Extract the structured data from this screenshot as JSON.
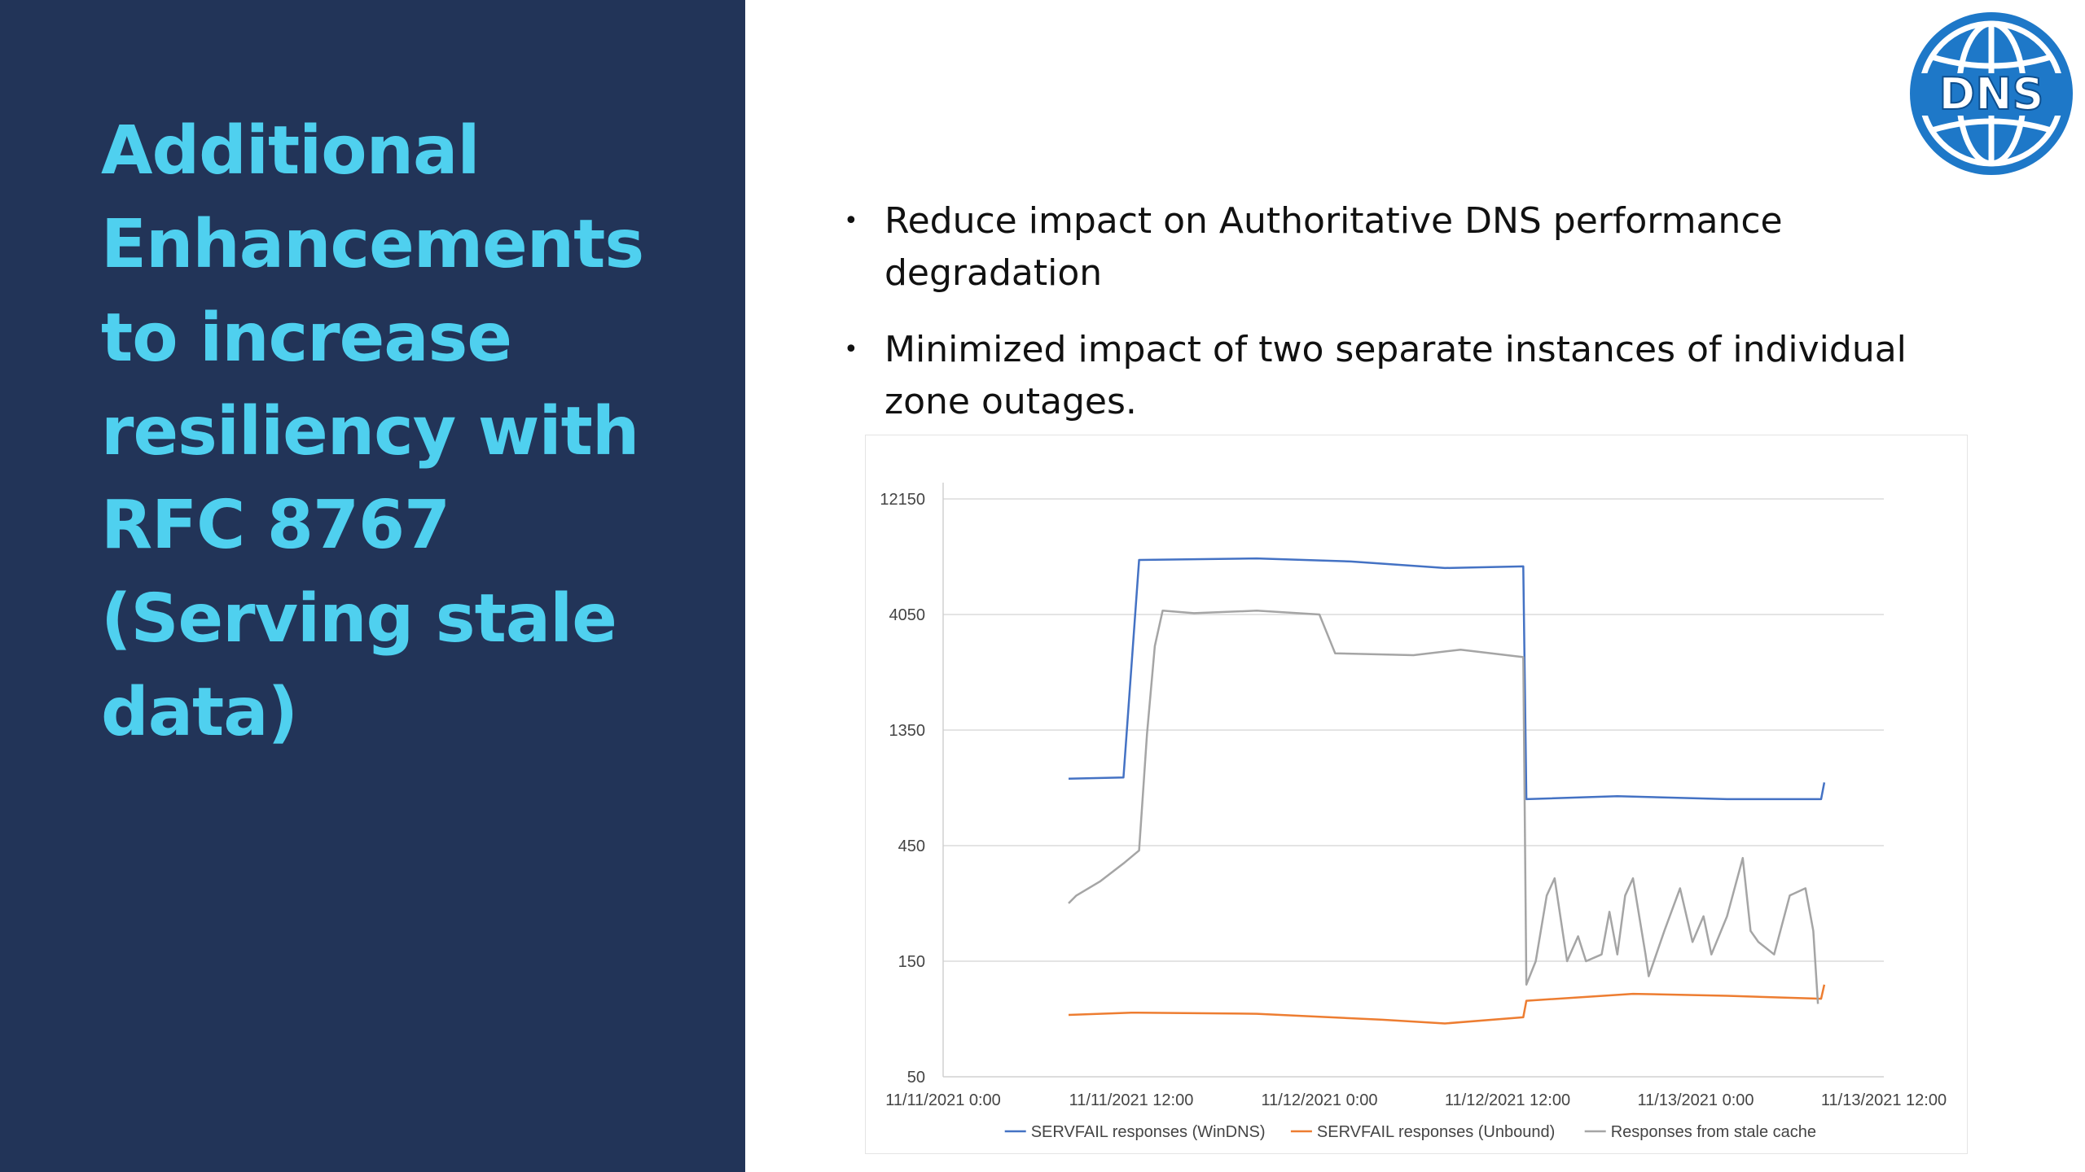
{
  "slide": {
    "title": "Additional Enhancements to increase resiliency with RFC 8767 (Serving stale data)",
    "logo_text": "DNS",
    "bullets": [
      "Reduce impact on Authoritative DNS performance degradation",
      "Minimized impact of two separate instances of individual zone outages."
    ],
    "colors": {
      "panel": "#223458",
      "title": "#4fd0ef",
      "logo": "#1e78c8"
    }
  },
  "chart_data": {
    "type": "line",
    "y_scale": "log",
    "y_ticks": [
      "50",
      "150",
      "450",
      "1350",
      "4050",
      "12150"
    ],
    "y_tick_values": [
      50,
      150,
      450,
      1350,
      4050,
      12150
    ],
    "x_ticks": [
      "11/11/2021 0:00",
      "11/11/2021 12:00",
      "11/12/2021 0:00",
      "11/12/2021 12:00",
      "11/13/2021 0:00",
      "11/13/2021 12:00"
    ],
    "x_range_hours": [
      0,
      60
    ],
    "legend_position": "bottom",
    "grid": "horizontal",
    "series": [
      {
        "name": "SERVFAIL responses (WinDNS)",
        "color": "#4472c4",
        "points": [
          [
            8,
            850
          ],
          [
            11.5,
            860
          ],
          [
            12.5,
            6800
          ],
          [
            20,
            6900
          ],
          [
            26,
            6700
          ],
          [
            32,
            6300
          ],
          [
            37,
            6400
          ],
          [
            37.2,
            700
          ],
          [
            43,
            720
          ],
          [
            50,
            700
          ],
          [
            56,
            700
          ],
          [
            56.2,
            820
          ]
        ]
      },
      {
        "name": "SERVFAIL responses (Unbound)",
        "color": "#ed7d31",
        "points": [
          [
            8,
            90
          ],
          [
            12,
            92
          ],
          [
            20,
            91
          ],
          [
            28,
            86
          ],
          [
            32,
            83
          ],
          [
            37,
            88
          ],
          [
            37.2,
            103
          ],
          [
            44,
            110
          ],
          [
            50,
            108
          ],
          [
            56,
            105
          ],
          [
            56.2,
            120
          ]
        ]
      },
      {
        "name": "Responses from stale cache",
        "color": "#a5a5a5",
        "points": [
          [
            8,
            260
          ],
          [
            8.5,
            280
          ],
          [
            10,
            320
          ],
          [
            11.5,
            380
          ],
          [
            12.5,
            430
          ],
          [
            13,
            1300
          ],
          [
            13.5,
            3000
          ],
          [
            14,
            4200
          ],
          [
            16,
            4100
          ],
          [
            20,
            4200
          ],
          [
            24,
            4050
          ],
          [
            25,
            2800
          ],
          [
            30,
            2750
          ],
          [
            33,
            2900
          ],
          [
            37,
            2700
          ],
          [
            37.2,
            120
          ],
          [
            37.8,
            150
          ],
          [
            38.5,
            280
          ],
          [
            39,
            330
          ],
          [
            39.8,
            150
          ],
          [
            40.5,
            190
          ],
          [
            41,
            150
          ],
          [
            42,
            160
          ],
          [
            42.5,
            240
          ],
          [
            43,
            160
          ],
          [
            43.5,
            280
          ],
          [
            44,
            330
          ],
          [
            44.8,
            160
          ],
          [
            45,
            130
          ],
          [
            46,
            200
          ],
          [
            47,
            300
          ],
          [
            47.8,
            180
          ],
          [
            48.5,
            230
          ],
          [
            49,
            160
          ],
          [
            50,
            230
          ],
          [
            51,
            400
          ],
          [
            51.5,
            200
          ],
          [
            52,
            180
          ],
          [
            53,
            160
          ],
          [
            54,
            280
          ],
          [
            55,
            300
          ],
          [
            55.5,
            200
          ],
          [
            55.8,
            100
          ]
        ]
      }
    ]
  }
}
